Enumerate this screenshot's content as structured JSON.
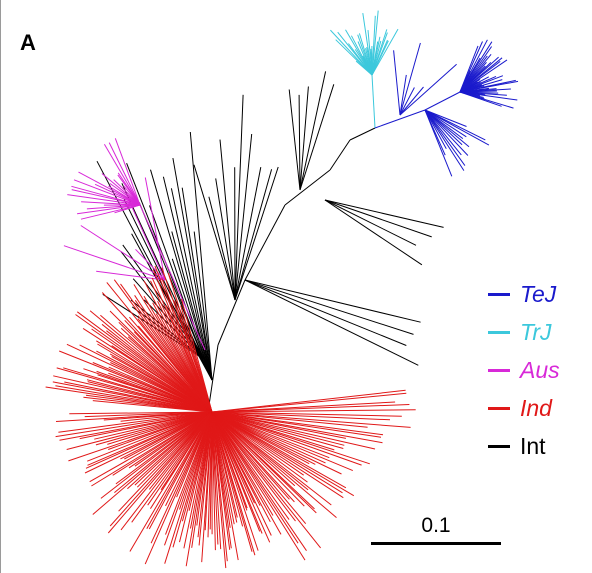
{
  "panel_label": "A",
  "scale_bar_label": "0.1",
  "legend": [
    {
      "key": "TeJ",
      "label": "TeJ",
      "color": "#1a1acc"
    },
    {
      "key": "TrJ",
      "label": "TrJ",
      "color": "#3cc8dc"
    },
    {
      "key": "Aus",
      "label": "Aus",
      "color": "#d829d8"
    },
    {
      "key": "Ind",
      "label": "Ind",
      "color": "#e01818"
    },
    {
      "key": "Int",
      "label": "Int",
      "color": "#000000"
    }
  ],
  "clade_colors": {
    "TeJ": "#1a1acc",
    "TrJ": "#3cc8dc",
    "Aus": "#d829d8",
    "Ind": "#e01818",
    "Int": "#000000"
  }
}
